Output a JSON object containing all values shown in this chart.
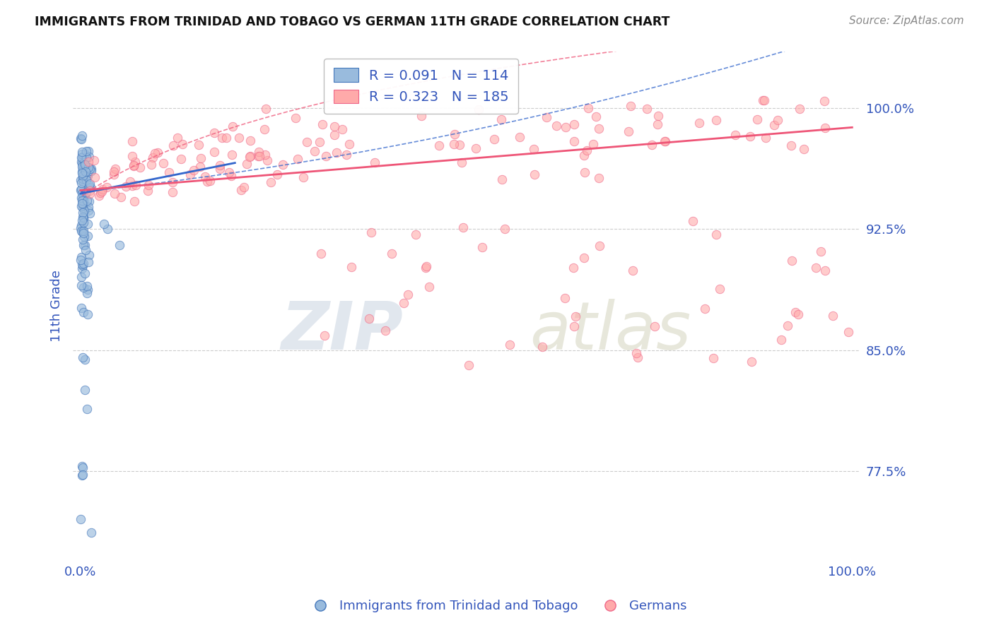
{
  "title": "IMMIGRANTS FROM TRINIDAD AND TOBAGO VS GERMAN 11TH GRADE CORRELATION CHART",
  "source": "Source: ZipAtlas.com",
  "ylabel": "11th Grade",
  "ytick_labels": [
    "77.5%",
    "85.0%",
    "92.5%",
    "100.0%"
  ],
  "ytick_values": [
    0.775,
    0.85,
    0.925,
    1.0
  ],
  "xlim": [
    -0.01,
    1.01
  ],
  "ylim": [
    0.72,
    1.035
  ],
  "legend_blue_r": "R = 0.091",
  "legend_blue_n": "N = 114",
  "legend_pink_r": "R = 0.323",
  "legend_pink_n": "N = 185",
  "blue_color": "#99BBDD",
  "pink_color": "#FFAAAA",
  "blue_edge_color": "#4477BB",
  "pink_edge_color": "#EE6688",
  "blue_line_color": "#3366CC",
  "pink_line_color": "#EE5577",
  "title_color": "#111111",
  "tick_label_color": "#3355BB",
  "watermark_zip_color": "#BBCCDD",
  "watermark_atlas_color": "#CCCCAA",
  "background_color": "#FFFFFF",
  "grid_color": "#CCCCCC",
  "marker_size": 80
}
